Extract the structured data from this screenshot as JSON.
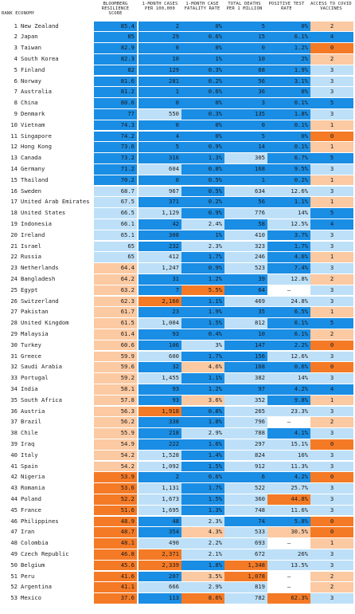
{
  "header": {
    "rank": "RANK",
    "economy": "ECONOMY",
    "score": "BLOOMBERG RESILIENCE SCORE",
    "cases": "1-MONTH CASES PER 100,000",
    "cfr": "1-MONTH CASE FATALITY RATE",
    "deaths": "TOTAL DEATHS PER 1 MILLION",
    "positive": "POSITIVE TEST RATE",
    "vaccines": "ACCESS TO COVID VACCINES"
  },
  "colors": {
    "blue_dark": "#1a8de4",
    "blue_light": "#bde0f8",
    "orange_light": "#fbc9a2",
    "orange_dark": "#f47a26",
    "white": "#ffffff"
  },
  "chart_data": {
    "type": "table",
    "columns": [
      "rank",
      "economy",
      "score",
      "cases",
      "cfr",
      "deaths",
      "positive",
      "vaccines"
    ],
    "rows": [
      {
        "rank": "1",
        "economy": "New Zealand",
        "score": "85.4",
        "cases": "2",
        "cfr": "0%",
        "deaths": "5",
        "positive": "0%",
        "vaccines": "2"
      },
      {
        "rank": "2",
        "economy": "Japan",
        "score": "85",
        "cases": "29",
        "cfr": "0.6%",
        "deaths": "15",
        "positive": "6.1%",
        "vaccines": "4"
      },
      {
        "rank": "3",
        "economy": "Taiwan",
        "score": "82.9",
        "cases": "0",
        "cfr": "0%",
        "deaths": "0",
        "positive": "1.2%",
        "vaccines": "0"
      },
      {
        "rank": "4",
        "economy": "South Korea",
        "score": "82.3",
        "cases": "10",
        "cfr": "1%",
        "deaths": "10",
        "positive": "2%",
        "vaccines": "2"
      },
      {
        "rank": "5",
        "economy": "Finland",
        "score": "82",
        "cases": "129",
        "cfr": "0.3%",
        "deaths": "68",
        "positive": "1.9%",
        "vaccines": "3"
      },
      {
        "rank": "6",
        "economy": "Norway",
        "score": "81.6",
        "cases": "281",
        "cfr": "0.2%",
        "deaths": "56",
        "positive": "3.1%",
        "vaccines": "3"
      },
      {
        "rank": "7",
        "economy": "Australia",
        "score": "81.2",
        "cases": "1",
        "cfr": "0.6%",
        "deaths": "36",
        "positive": "0%",
        "vaccines": "3"
      },
      {
        "rank": "8",
        "economy": "China",
        "score": "80.6",
        "cases": "0",
        "cfr": "0%",
        "deaths": "3",
        "positive": "0.1%",
        "vaccines": "5"
      },
      {
        "rank": "9",
        "economy": "Denmark",
        "score": "77",
        "cases": "550",
        "cfr": "0.3%",
        "deaths": "135",
        "positive": "1.8%",
        "vaccines": "3"
      },
      {
        "rank": "10",
        "economy": "Vietnam",
        "score": "74.3",
        "cases": "0",
        "cfr": "0%",
        "deaths": "0",
        "positive": "0.1%",
        "vaccines": "1"
      },
      {
        "rank": "11",
        "economy": "Singapore",
        "score": "74.2",
        "cases": "4",
        "cfr": "0%",
        "deaths": "5",
        "positive": "0%",
        "vaccines": "0"
      },
      {
        "rank": "12",
        "economy": "Hong Kong",
        "score": "73.6",
        "cases": "5",
        "cfr": "0.9%",
        "deaths": "14",
        "positive": "0.1%",
        "vaccines": "1"
      },
      {
        "rank": "13",
        "economy": "Canada",
        "score": "73.2",
        "cases": "316",
        "cfr": "1.3%",
        "deaths": "305",
        "positive": "6.7%",
        "vaccines": "5"
      },
      {
        "rank": "14",
        "economy": "Germany",
        "score": "71.2",
        "cases": "604",
        "cfr": "0.8%",
        "deaths": "168",
        "positive": "9.5%",
        "vaccines": "3"
      },
      {
        "rank": "15",
        "economy": "Thailand",
        "score": "70.2",
        "cases": "0",
        "cfr": "0.5%",
        "deaths": "1",
        "positive": "0.2%",
        "vaccines": "1"
      },
      {
        "rank": "16",
        "economy": "Sweden",
        "score": "68.7",
        "cases": "967",
        "cfr": "0.5%",
        "deaths": "634",
        "positive": "12.6%",
        "vaccines": "3"
      },
      {
        "rank": "17",
        "economy": "United Arab Emirates",
        "score": "67.5",
        "cases": "371",
        "cfr": "0.2%",
        "deaths": "56",
        "positive": "1.1%",
        "vaccines": "1"
      },
      {
        "rank": "18",
        "economy": "United States",
        "score": "66.5",
        "cases": "1,129",
        "cfr": "0.9%",
        "deaths": "776",
        "positive": "14%",
        "vaccines": "5"
      },
      {
        "rank": "19",
        "economy": "Indonesia",
        "score": "66.1",
        "cases": "42",
        "cfr": "2.4%",
        "deaths": "58",
        "positive": "12.5%",
        "vaccines": "4"
      },
      {
        "rank": "20",
        "economy": "Ireland",
        "score": "65.1",
        "cases": "308",
        "cfr": "1%",
        "deaths": "410",
        "positive": "3.7%",
        "vaccines": "3"
      },
      {
        "rank": "21",
        "economy": "Israel",
        "score": "65",
        "cases": "232",
        "cfr": "2.3%",
        "deaths": "323",
        "positive": "1.7%",
        "vaccines": "3"
      },
      {
        "rank": "22",
        "economy": "Russia",
        "score": "65",
        "cases": "412",
        "cfr": "1.7%",
        "deaths": "246",
        "positive": "4.6%",
        "vaccines": "1"
      },
      {
        "rank": "23",
        "economy": "Netherlands",
        "score": "64.4",
        "cases": "1,247",
        "cfr": "0.9%",
        "deaths": "523",
        "positive": "7.4%",
        "vaccines": "3"
      },
      {
        "rank": "24",
        "economy": "Bangladesh",
        "score": "64.2",
        "cases": "31",
        "cfr": "1.2%",
        "deaths": "39",
        "positive": "12.8%",
        "vaccines": "2"
      },
      {
        "rank": "25",
        "economy": "Egypt",
        "score": "63.2",
        "cases": "7",
        "cfr": "5.5%",
        "deaths": "64",
        "positive": "–",
        "vaccines": "3"
      },
      {
        "rank": "26",
        "economy": "Switzerland",
        "score": "62.3",
        "cases": "2,160",
        "cfr": "1.1%",
        "deaths": "469",
        "positive": "24.8%",
        "vaccines": "3"
      },
      {
        "rank": "27",
        "economy": "Pakistan",
        "score": "61.7",
        "cases": "23",
        "cfr": "1.9%",
        "deaths": "35",
        "positive": "6.5%",
        "vaccines": "1"
      },
      {
        "rank": "28",
        "economy": "United Kingdom",
        "score": "61.5",
        "cases": "1,004",
        "cfr": "1.5%",
        "deaths": "812",
        "positive": "6.1%",
        "vaccines": "5"
      },
      {
        "rank": "29",
        "economy": "Malaysia",
        "score": "61.4",
        "cases": "93",
        "cfr": "0.4%",
        "deaths": "10",
        "positive": "6.1%",
        "vaccines": "2"
      },
      {
        "rank": "30",
        "economy": "Turkey",
        "score": "60.6",
        "cases": "106",
        "cfr": "3%",
        "deaths": "147",
        "positive": "2.2%",
        "vaccines": "0"
      },
      {
        "rank": "31",
        "economy": "Greece",
        "score": "59.9",
        "cases": "600",
        "cfr": "1.7%",
        "deaths": "156",
        "positive": "12.6%",
        "vaccines": "3"
      },
      {
        "rank": "32",
        "economy": "Saudi Arabia",
        "score": "59.6",
        "cases": "32",
        "cfr": "4.6%",
        "deaths": "168",
        "positive": "0.6%",
        "vaccines": "0"
      },
      {
        "rank": "33",
        "economy": "Portugal",
        "score": "59.2",
        "cases": "1,455",
        "cfr": "1.1%",
        "deaths": "382",
        "positive": "14%",
        "vaccines": "3"
      },
      {
        "rank": "34",
        "economy": "India",
        "score": "58.1",
        "cases": "93",
        "cfr": "1.2%",
        "deaths": "97",
        "positive": "4.2%",
        "vaccines": "4"
      },
      {
        "rank": "35",
        "economy": "South Africa",
        "score": "57.8",
        "cases": "93",
        "cfr": "3.6%",
        "deaths": "352",
        "positive": "9.8%",
        "vaccines": "1"
      },
      {
        "rank": "36",
        "economy": "Austria",
        "score": "56.3",
        "cases": "1,918",
        "cfr": "0.8%",
        "deaths": "265",
        "positive": "23.3%",
        "vaccines": "3"
      },
      {
        "rank": "37",
        "economy": "Brazil",
        "score": "56.2",
        "cases": "338",
        "cfr": "1.8%",
        "deaths": "796",
        "positive": "–",
        "vaccines": "2"
      },
      {
        "rank": "38",
        "economy": "Chile",
        "score": "55.9",
        "cases": "218",
        "cfr": "2.9%",
        "deaths": "788",
        "positive": "4.1%",
        "vaccines": "3"
      },
      {
        "rank": "39",
        "economy": "Iraq",
        "score": "54.9",
        "cases": "222",
        "cfr": "1.6%",
        "deaths": "297",
        "positive": "15.1%",
        "vaccines": "0"
      },
      {
        "rank": "40",
        "economy": "Italy",
        "score": "54.2",
        "cases": "1,528",
        "cfr": "1.4%",
        "deaths": "824",
        "positive": "16%",
        "vaccines": "3"
      },
      {
        "rank": "41",
        "economy": "Spain",
        "score": "54.2",
        "cases": "1,092",
        "cfr": "1.5%",
        "deaths": "912",
        "positive": "11.3%",
        "vaccines": "3"
      },
      {
        "rank": "42",
        "economy": "Nigeria",
        "score": "53.9",
        "cases": "2",
        "cfr": "0.6%",
        "deaths": "6",
        "positive": "4.2%",
        "vaccines": "0"
      },
      {
        "rank": "43",
        "economy": "Romania",
        "score": "53.6",
        "cases": "1,131",
        "cfr": "1.7%",
        "deaths": "522",
        "positive": "25.7%",
        "vaccines": "3"
      },
      {
        "rank": "44",
        "economy": "Poland",
        "score": "52.2",
        "cases": "1,673",
        "cfr": "1.5%",
        "deaths": "360",
        "positive": "44.8%",
        "vaccines": "3"
      },
      {
        "rank": "45",
        "economy": "France",
        "score": "51.6",
        "cases": "1,695",
        "cfr": "1.3%",
        "deaths": "748",
        "positive": "11.6%",
        "vaccines": "3"
      },
      {
        "rank": "46",
        "economy": "Philippines",
        "score": "48.9",
        "cases": "48",
        "cfr": "2.3%",
        "deaths": "74",
        "positive": "5.8%",
        "vaccines": "0"
      },
      {
        "rank": "47",
        "economy": "Iran",
        "score": "48.7",
        "cases": "354",
        "cfr": "4.3%",
        "deaths": "533",
        "positive": "30.5%",
        "vaccines": "0"
      },
      {
        "rank": "48",
        "economy": "Colombia",
        "score": "48.1",
        "cases": "490",
        "cfr": "2.2%",
        "deaths": "693",
        "positive": "–",
        "vaccines": "1"
      },
      {
        "rank": "49",
        "economy": "Czech Republic",
        "score": "46.8",
        "cases": "2,371",
        "cfr": "2.1%",
        "deaths": "672",
        "positive": "26%",
        "vaccines": "3"
      },
      {
        "rank": "50",
        "economy": "Belgium",
        "score": "45.6",
        "cases": "2,339",
        "cfr": "1.8%",
        "deaths": "1,348",
        "positive": "13.5%",
        "vaccines": "3"
      },
      {
        "rank": "51",
        "economy": "Peru",
        "score": "41.6",
        "cases": "207",
        "cfr": "3.5%",
        "deaths": "1,078",
        "positive": "–",
        "vaccines": "2"
      },
      {
        "rank": "52",
        "economy": "Argentina",
        "score": "41.1",
        "cases": "666",
        "cfr": "2.9%",
        "deaths": "819",
        "positive": "–",
        "vaccines": "2"
      },
      {
        "rank": "53",
        "economy": "Mexico",
        "score": "37.6",
        "cases": "113",
        "cfr": "8.6%",
        "deaths": "782",
        "positive": "62.3%",
        "vaccines": "3"
      }
    ]
  }
}
